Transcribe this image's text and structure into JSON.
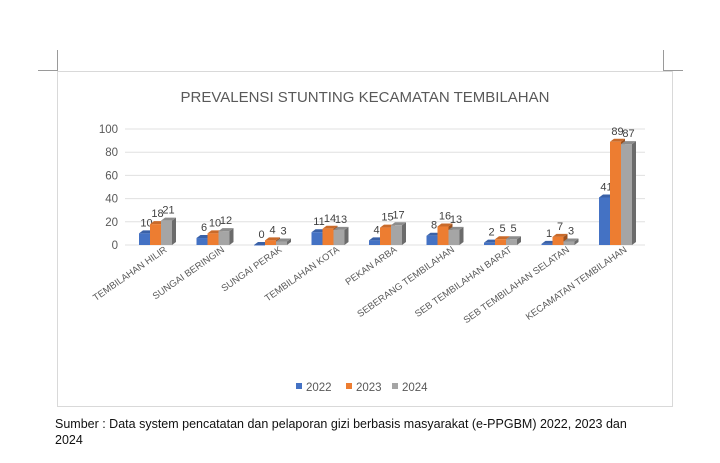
{
  "chart_data": {
    "type": "bar",
    "title": "PREVALENSI STUNTING KECAMATAN TEMBILAHAN",
    "categories": [
      "TEMBILAHAN HILIR",
      "SUNGAI BERINGIN",
      "SUNGAI PERAK",
      "TEMBILAHAN KOTA",
      "PEKAN ARBA",
      "SEBERANG TEMBILAHAN",
      "SEB TEMBILAHAN BARAT",
      "SEB TEMBILAHAN SELATAN",
      "KECAMATAN TEMBILAHAN"
    ],
    "series": [
      {
        "name": "2022",
        "color": "#4472c4",
        "values": [
          10,
          6,
          0,
          11,
          4,
          8,
          2,
          1,
          41
        ]
      },
      {
        "name": "2023",
        "color": "#ed7d31",
        "values": [
          18,
          10,
          4,
          14,
          15,
          16,
          5,
          7,
          89
        ]
      },
      {
        "name": "2024",
        "color": "#a5a5a5",
        "values": [
          21,
          12,
          3,
          13,
          17,
          13,
          5,
          3,
          87
        ]
      }
    ],
    "yticks": [
      0,
      20,
      40,
      60,
      80,
      100
    ],
    "ylim": [
      0,
      100
    ],
    "grid": true,
    "legend": "bottom"
  },
  "caption": "Sumber : Data system pencatatan dan pelaporan gizi berbasis masyarakat (e-PPGBM) 2022, 2023 dan 2024"
}
